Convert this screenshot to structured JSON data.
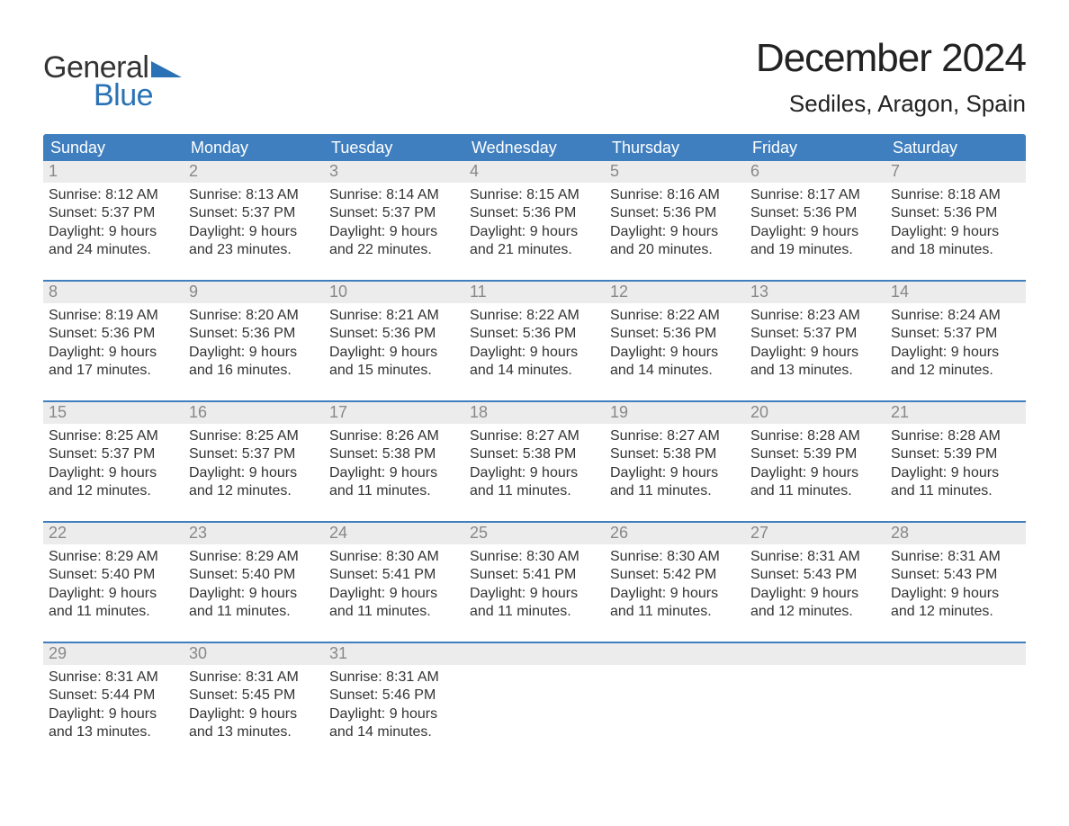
{
  "logo": {
    "text1": "General",
    "text2": "Blue",
    "triangle_color": "#2a72b5"
  },
  "title": "December 2024",
  "location": "Sediles, Aragon, Spain",
  "colors": {
    "header_bg": "#3f7fbf",
    "header_text": "#ffffff",
    "week_border": "#3f7fbf",
    "daynum_bg": "#ececec",
    "daynum_text": "#888888",
    "body_text": "#333333",
    "background": "#ffffff"
  },
  "day_labels": [
    "Sunday",
    "Monday",
    "Tuesday",
    "Wednesday",
    "Thursday",
    "Friday",
    "Saturday"
  ],
  "weeks": [
    [
      {
        "n": "1",
        "sunrise": "8:12 AM",
        "sunset": "5:37 PM",
        "d1": "Daylight: 9 hours",
        "d2": "and 24 minutes."
      },
      {
        "n": "2",
        "sunrise": "8:13 AM",
        "sunset": "5:37 PM",
        "d1": "Daylight: 9 hours",
        "d2": "and 23 minutes."
      },
      {
        "n": "3",
        "sunrise": "8:14 AM",
        "sunset": "5:37 PM",
        "d1": "Daylight: 9 hours",
        "d2": "and 22 minutes."
      },
      {
        "n": "4",
        "sunrise": "8:15 AM",
        "sunset": "5:36 PM",
        "d1": "Daylight: 9 hours",
        "d2": "and 21 minutes."
      },
      {
        "n": "5",
        "sunrise": "8:16 AM",
        "sunset": "5:36 PM",
        "d1": "Daylight: 9 hours",
        "d2": "and 20 minutes."
      },
      {
        "n": "6",
        "sunrise": "8:17 AM",
        "sunset": "5:36 PM",
        "d1": "Daylight: 9 hours",
        "d2": "and 19 minutes."
      },
      {
        "n": "7",
        "sunrise": "8:18 AM",
        "sunset": "5:36 PM",
        "d1": "Daylight: 9 hours",
        "d2": "and 18 minutes."
      }
    ],
    [
      {
        "n": "8",
        "sunrise": "8:19 AM",
        "sunset": "5:36 PM",
        "d1": "Daylight: 9 hours",
        "d2": "and 17 minutes."
      },
      {
        "n": "9",
        "sunrise": "8:20 AM",
        "sunset": "5:36 PM",
        "d1": "Daylight: 9 hours",
        "d2": "and 16 minutes."
      },
      {
        "n": "10",
        "sunrise": "8:21 AM",
        "sunset": "5:36 PM",
        "d1": "Daylight: 9 hours",
        "d2": "and 15 minutes."
      },
      {
        "n": "11",
        "sunrise": "8:22 AM",
        "sunset": "5:36 PM",
        "d1": "Daylight: 9 hours",
        "d2": "and 14 minutes."
      },
      {
        "n": "12",
        "sunrise": "8:22 AM",
        "sunset": "5:36 PM",
        "d1": "Daylight: 9 hours",
        "d2": "and 14 minutes."
      },
      {
        "n": "13",
        "sunrise": "8:23 AM",
        "sunset": "5:37 PM",
        "d1": "Daylight: 9 hours",
        "d2": "and 13 minutes."
      },
      {
        "n": "14",
        "sunrise": "8:24 AM",
        "sunset": "5:37 PM",
        "d1": "Daylight: 9 hours",
        "d2": "and 12 minutes."
      }
    ],
    [
      {
        "n": "15",
        "sunrise": "8:25 AM",
        "sunset": "5:37 PM",
        "d1": "Daylight: 9 hours",
        "d2": "and 12 minutes."
      },
      {
        "n": "16",
        "sunrise": "8:25 AM",
        "sunset": "5:37 PM",
        "d1": "Daylight: 9 hours",
        "d2": "and 12 minutes."
      },
      {
        "n": "17",
        "sunrise": "8:26 AM",
        "sunset": "5:38 PM",
        "d1": "Daylight: 9 hours",
        "d2": "and 11 minutes."
      },
      {
        "n": "18",
        "sunrise": "8:27 AM",
        "sunset": "5:38 PM",
        "d1": "Daylight: 9 hours",
        "d2": "and 11 minutes."
      },
      {
        "n": "19",
        "sunrise": "8:27 AM",
        "sunset": "5:38 PM",
        "d1": "Daylight: 9 hours",
        "d2": "and 11 minutes."
      },
      {
        "n": "20",
        "sunrise": "8:28 AM",
        "sunset": "5:39 PM",
        "d1": "Daylight: 9 hours",
        "d2": "and 11 minutes."
      },
      {
        "n": "21",
        "sunrise": "8:28 AM",
        "sunset": "5:39 PM",
        "d1": "Daylight: 9 hours",
        "d2": "and 11 minutes."
      }
    ],
    [
      {
        "n": "22",
        "sunrise": "8:29 AM",
        "sunset": "5:40 PM",
        "d1": "Daylight: 9 hours",
        "d2": "and 11 minutes."
      },
      {
        "n": "23",
        "sunrise": "8:29 AM",
        "sunset": "5:40 PM",
        "d1": "Daylight: 9 hours",
        "d2": "and 11 minutes."
      },
      {
        "n": "24",
        "sunrise": "8:30 AM",
        "sunset": "5:41 PM",
        "d1": "Daylight: 9 hours",
        "d2": "and 11 minutes."
      },
      {
        "n": "25",
        "sunrise": "8:30 AM",
        "sunset": "5:41 PM",
        "d1": "Daylight: 9 hours",
        "d2": "and 11 minutes."
      },
      {
        "n": "26",
        "sunrise": "8:30 AM",
        "sunset": "5:42 PM",
        "d1": "Daylight: 9 hours",
        "d2": "and 11 minutes."
      },
      {
        "n": "27",
        "sunrise": "8:31 AM",
        "sunset": "5:43 PM",
        "d1": "Daylight: 9 hours",
        "d2": "and 12 minutes."
      },
      {
        "n": "28",
        "sunrise": "8:31 AM",
        "sunset": "5:43 PM",
        "d1": "Daylight: 9 hours",
        "d2": "and 12 minutes."
      }
    ],
    [
      {
        "n": "29",
        "sunrise": "8:31 AM",
        "sunset": "5:44 PM",
        "d1": "Daylight: 9 hours",
        "d2": "and 13 minutes."
      },
      {
        "n": "30",
        "sunrise": "8:31 AM",
        "sunset": "5:45 PM",
        "d1": "Daylight: 9 hours",
        "d2": "and 13 minutes."
      },
      {
        "n": "31",
        "sunrise": "8:31 AM",
        "sunset": "5:46 PM",
        "d1": "Daylight: 9 hours",
        "d2": "and 14 minutes."
      },
      {
        "empty": true
      },
      {
        "empty": true
      },
      {
        "empty": true
      },
      {
        "empty": true
      }
    ]
  ],
  "labels": {
    "sunrise_prefix": "Sunrise: ",
    "sunset_prefix": "Sunset: "
  }
}
